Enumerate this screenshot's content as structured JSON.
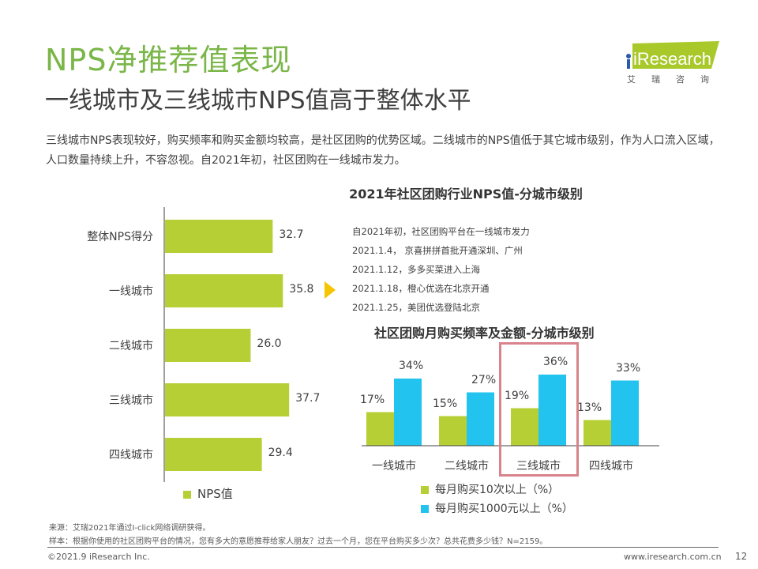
{
  "header": {
    "title": "NPS净推荐值表现",
    "subtitle": "一线城市及三线城市NPS值高于整体水平",
    "description": "三线城市NPS表现较好，购买频率和购买金额均较高，是社区团购的优势区域。二线城市的NPS值低于其它城市级别，作为人口流入区域，人口数量持续上升，不容忽视。自2021年初，社区团购在一线城市发力。"
  },
  "logo": {
    "brand": "iResearch",
    "cn": "艾瑞咨询",
    "color": "#a9c92b"
  },
  "colors": {
    "green": "#b5cf34",
    "blue": "#22c3ee",
    "title_green": "#7ab648",
    "arrow_yellow": "#f7c400",
    "highlight_red": "#d9838b"
  },
  "notes": [
    "自2021年初，社区团购平台在一线城市发力",
    "2021.1.4， 京喜拼拼首批开通深圳、广州",
    "2021.1.12，多多买菜进入上海",
    "2021.1.18，橙心优选在北京开通",
    "2021.1.25，美团优选登陆北京"
  ],
  "chart_data": [
    {
      "type": "bar",
      "orientation": "horizontal",
      "title": "2021年社区团购行业NPS值-分城市级别",
      "categories": [
        "整体NPS得分",
        "一线城市",
        "二线城市",
        "三线城市",
        "四线城市"
      ],
      "series": [
        {
          "name": "NPS值",
          "values": [
            32.7,
            35.8,
            26.0,
            37.7,
            29.4
          ],
          "labels": [
            "32.7",
            "35.8",
            "26.0",
            "37.7",
            "29.4"
          ]
        }
      ],
      "xlim": [
        0,
        40
      ],
      "grid": false,
      "legend": "bottom-left"
    },
    {
      "type": "bar",
      "title": "社区团购月购买频率及金额-分城市级别",
      "categories": [
        "一线城市",
        "二线城市",
        "三线城市",
        "四线城市"
      ],
      "series": [
        {
          "name": "每月购买10次以上（%）",
          "values": [
            17,
            15,
            19,
            13
          ],
          "labels": [
            "17%",
            "15%",
            "19%",
            "13%"
          ]
        },
        {
          "name": "每月购买1000元以上（%）",
          "values": [
            34,
            27,
            36,
            33
          ],
          "labels": [
            "34%",
            "27%",
            "36%",
            "33%"
          ]
        }
      ],
      "highlighted_category": "三线城市",
      "ylim": [
        0,
        40
      ],
      "grid": false,
      "legend": "bottom"
    }
  ],
  "footer": {
    "source": "来源：艾瑞2021年通过I-click网络调研获得。",
    "sample": "样本：根据你使用的社区团购平台的情况，您有多大的意愿推荐给家人朋友？过去一个月，您在平台购买多少次？总共花费多少钱？N=2159。",
    "copyright": "©2021.9 iResearch Inc.",
    "website": "www.iresearch.com.cn",
    "page": "12"
  }
}
